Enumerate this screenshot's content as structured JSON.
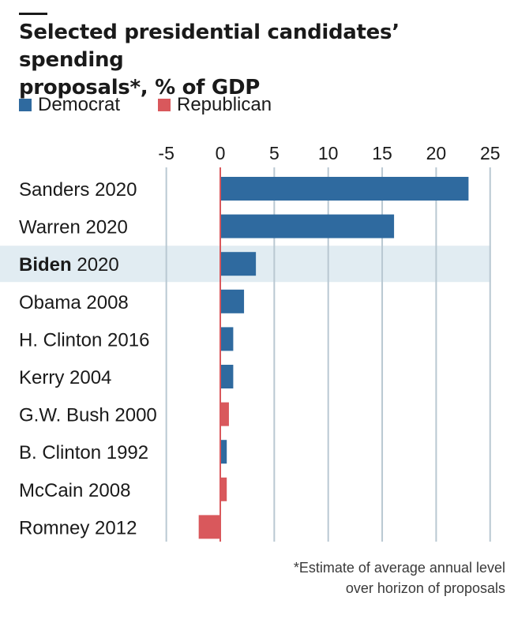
{
  "title_line1": "Selected presidential candidates’ spending",
  "title_line2": "proposals*, % of GDP",
  "legend": [
    {
      "label": "Democrat",
      "color": "#2f6a9f"
    },
    {
      "label": "Republican",
      "color": "#d9585c"
    }
  ],
  "footnote_line1": "*Estimate of average annual level",
  "footnote_line2": "over horizon of proposals",
  "chart_data": {
    "type": "bar",
    "orientation": "horizontal",
    "title": "Selected presidential candidates’ spending proposals*, % of GDP",
    "xlim": [
      -5,
      25
    ],
    "ticks": [
      "-5",
      "0",
      "5",
      "10",
      "15",
      "20",
      "25"
    ],
    "tick_values": [
      -5,
      0,
      5,
      10,
      15,
      20,
      25
    ],
    "grid": true,
    "legend_position": "top-left",
    "highlight": "Biden 2020",
    "categories": [
      {
        "name": "Sanders",
        "year": "2020",
        "value": 23.0,
        "party": "Democrat",
        "bold": false
      },
      {
        "name": "Warren",
        "year": "2020",
        "value": 16.1,
        "party": "Democrat",
        "bold": false
      },
      {
        "name": "Biden",
        "year": "2020",
        "value": 3.3,
        "party": "Democrat",
        "bold": true
      },
      {
        "name": "Obama",
        "year": "2008",
        "value": 2.2,
        "party": "Democrat",
        "bold": false
      },
      {
        "name": "H. Clinton",
        "year": "2016",
        "value": 1.2,
        "party": "Democrat",
        "bold": false
      },
      {
        "name": "Kerry",
        "year": "2004",
        "value": 1.2,
        "party": "Democrat",
        "bold": false
      },
      {
        "name": "G.W. Bush",
        "year": "2000",
        "value": 0.8,
        "party": "Republican",
        "bold": false
      },
      {
        "name": "B. Clinton",
        "year": "1992",
        "value": 0.6,
        "party": "Democrat",
        "bold": false
      },
      {
        "name": "McCain",
        "year": "2008",
        "value": 0.6,
        "party": "Republican",
        "bold": false
      },
      {
        "name": "Romney",
        "year": "2012",
        "value": -2.0,
        "party": "Republican",
        "bold": false
      }
    ],
    "colors": {
      "Democrat": "#2f6a9f",
      "Republican": "#d9585c",
      "highlight": "#e1ecf2",
      "grid": "#b9c8d2",
      "zero_line": "#d9585c"
    }
  }
}
